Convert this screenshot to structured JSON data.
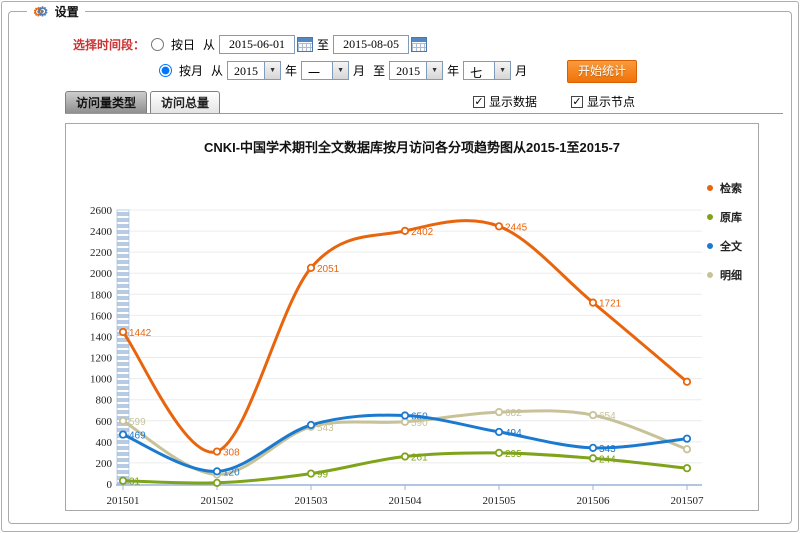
{
  "icons": {
    "check": "✓",
    "dropdown_arrow": "▼",
    "gear": "⚙"
  },
  "settings": {
    "legend_title": "设置",
    "period_label": "选择时间段：",
    "by_day": {
      "label": "按日",
      "from_label": "从",
      "from_value": "2015-06-01",
      "to_label": "至",
      "to_value": "2015-08-05"
    },
    "by_month": {
      "label": "按月",
      "from_label": "从",
      "from_year": "2015",
      "year_label": "年",
      "from_month": "一",
      "month_label": "月",
      "to_label": "至",
      "to_year": "2015",
      "to_month": "七"
    },
    "start_button": "开始统计"
  },
  "tabs": [
    {
      "label": "访问量类型",
      "active": true
    },
    {
      "label": "访问总量",
      "active": false
    }
  ],
  "checkboxes": [
    {
      "label": "显示数据",
      "checked": true
    },
    {
      "label": "显示节点",
      "checked": true
    }
  ],
  "chart_data": {
    "type": "line",
    "title": "CNKI-中国学术期刊全文数据库按月访问各分项趋势图从2015-1至2015-7",
    "categories": [
      "201501",
      "201502",
      "201503",
      "201504",
      "201505",
      "201506",
      "201507"
    ],
    "ylim": [
      0,
      2600
    ],
    "ytick_step": 200,
    "grid": true,
    "legend_position": "right",
    "highlight_bar_category": "201501",
    "series": [
      {
        "name": "检索",
        "color": "#e8650d",
        "values": [
          1442,
          308,
          2051,
          2402,
          2445,
          1721,
          970
        ],
        "labels": [
          "1442",
          "308",
          "2051",
          "2402",
          "2445",
          "1721",
          ""
        ]
      },
      {
        "name": "原库",
        "color": "#7fa31b",
        "values": [
          31,
          11,
          99,
          261,
          295,
          244,
          150
        ],
        "labels": [
          "31",
          "",
          "99",
          "261",
          "295",
          "244",
          ""
        ]
      },
      {
        "name": "全文",
        "color": "#1b79d0",
        "values": [
          469,
          120,
          560,
          650,
          494,
          343,
          430
        ],
        "labels": [
          "469",
          "120",
          "",
          "650",
          "494",
          "343",
          ""
        ]
      },
      {
        "name": "明细",
        "color": "#c8c299",
        "values": [
          599,
          90,
          543,
          590,
          682,
          654,
          330
        ],
        "labels": [
          "599",
          "",
          "543",
          "590",
          "682",
          "654",
          ""
        ]
      }
    ]
  }
}
